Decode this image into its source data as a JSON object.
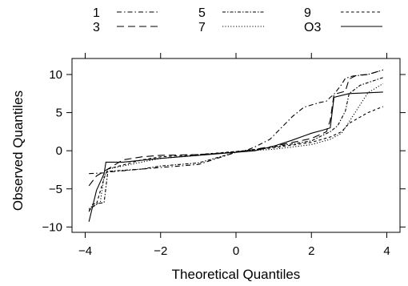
{
  "chart_data": {
    "type": "line",
    "title": "",
    "xlabel": "Theoretical Quantiles",
    "ylabel": "Observed Quantiles",
    "xlim": [
      -4.35,
      4.35
    ],
    "ylim": [
      -10.7,
      12.1
    ],
    "xticks": [
      -4,
      -2,
      0,
      2,
      4
    ],
    "yticks": [
      -10,
      -5,
      0,
      5,
      10
    ],
    "grid": false,
    "legend_position": "top",
    "series": [
      {
        "name": "1",
        "dash": "dashdot",
        "points": [
          [
            -3.9,
            -3.0
          ],
          [
            -3.5,
            -2.9
          ],
          [
            -3.4,
            -2.8
          ],
          [
            -2.5,
            -2.4
          ],
          [
            -2.0,
            -2.2
          ],
          [
            -1.0,
            -1.8
          ],
          [
            -0.5,
            -1.0
          ],
          [
            0.0,
            -0.2
          ],
          [
            0.3,
            0.1
          ],
          [
            0.5,
            0.5
          ],
          [
            0.9,
            1.5
          ],
          [
            1.1,
            2.5
          ],
          [
            1.5,
            4.5
          ],
          [
            1.8,
            5.7
          ],
          [
            2.2,
            6.3
          ],
          [
            2.4,
            6.5
          ],
          [
            2.5,
            7.0
          ],
          [
            2.6,
            7.4
          ],
          [
            2.8,
            8.7
          ],
          [
            2.9,
            9.5
          ],
          [
            3.1,
            9.8
          ],
          [
            3.5,
            10.0
          ],
          [
            3.9,
            10.6
          ]
        ]
      },
      {
        "name": "3",
        "dash": "longdash",
        "points": [
          [
            -3.9,
            -4.6
          ],
          [
            -3.7,
            -3.3
          ],
          [
            -3.5,
            -2.7
          ],
          [
            -3.0,
            -1.2
          ],
          [
            -2.5,
            -0.8
          ],
          [
            -2.0,
            -0.6
          ],
          [
            -1.0,
            -0.5
          ],
          [
            0.0,
            -0.2
          ],
          [
            1.0,
            0.6
          ],
          [
            2.0,
            1.6
          ],
          [
            2.4,
            2.5
          ],
          [
            2.5,
            4.0
          ],
          [
            2.6,
            7.4
          ],
          [
            2.9,
            7.8
          ],
          [
            3.0,
            9.4
          ],
          [
            3.2,
            9.9
          ],
          [
            3.5,
            10.0
          ],
          [
            3.9,
            10.6
          ]
        ]
      },
      {
        "name": "5",
        "dash": "dashdot2",
        "points": [
          [
            -3.9,
            -8.0
          ],
          [
            -3.8,
            -7.0
          ],
          [
            -3.5,
            -6.8
          ],
          [
            -3.4,
            -2.7
          ],
          [
            -2.5,
            -2.4
          ],
          [
            -2.0,
            -2.0
          ],
          [
            -1.0,
            -1.6
          ],
          [
            0.0,
            -0.2
          ],
          [
            1.0,
            0.5
          ],
          [
            2.0,
            1.3
          ],
          [
            2.5,
            2.5
          ],
          [
            2.7,
            3.3
          ],
          [
            2.9,
            5.2
          ],
          [
            3.0,
            7.5
          ],
          [
            3.3,
            8.6
          ],
          [
            3.9,
            9.6
          ]
        ]
      },
      {
        "name": "7",
        "dash": "dotted",
        "points": [
          [
            -3.9,
            -7.6
          ],
          [
            -3.6,
            -6.8
          ],
          [
            -3.5,
            -3.4
          ],
          [
            -3.4,
            -2.4
          ],
          [
            -2.5,
            -1.5
          ],
          [
            -2.0,
            -1.0
          ],
          [
            -1.0,
            -0.6
          ],
          [
            0.0,
            -0.1
          ],
          [
            1.0,
            0.2
          ],
          [
            2.0,
            0.8
          ],
          [
            2.5,
            1.5
          ],
          [
            2.8,
            2.3
          ],
          [
            3.0,
            3.8
          ],
          [
            3.5,
            7.6
          ],
          [
            3.9,
            8.8
          ]
        ]
      },
      {
        "name": "9",
        "dash": "shortdash",
        "points": [
          [
            -3.9,
            -7.8
          ],
          [
            -3.7,
            -7.0
          ],
          [
            -3.5,
            -3.6
          ],
          [
            -3.4,
            -2.4
          ],
          [
            -2.5,
            -1.2
          ],
          [
            -2.0,
            -0.8
          ],
          [
            -1.0,
            -0.5
          ],
          [
            0.0,
            -0.1
          ],
          [
            1.0,
            0.4
          ],
          [
            2.0,
            1.1
          ],
          [
            2.5,
            1.8
          ],
          [
            2.8,
            2.5
          ],
          [
            3.0,
            3.6
          ],
          [
            3.5,
            5.0
          ],
          [
            3.9,
            5.8
          ]
        ]
      },
      {
        "name": "O3",
        "dash": "solid",
        "points": [
          [
            -3.9,
            -9.3
          ],
          [
            -3.7,
            -5.2
          ],
          [
            -3.5,
            -3.0
          ],
          [
            -3.45,
            -1.5
          ],
          [
            -3.0,
            -1.5
          ],
          [
            -2.0,
            -1.0
          ],
          [
            -1.0,
            -0.6
          ],
          [
            0.0,
            -0.2
          ],
          [
            0.5,
            0.0
          ],
          [
            1.0,
            0.6
          ],
          [
            1.5,
            1.4
          ],
          [
            2.0,
            2.3
          ],
          [
            2.3,
            2.7
          ],
          [
            2.5,
            3.0
          ],
          [
            2.6,
            7.0
          ],
          [
            3.0,
            7.5
          ],
          [
            3.5,
            7.6
          ],
          [
            3.9,
            7.7
          ]
        ]
      }
    ]
  }
}
